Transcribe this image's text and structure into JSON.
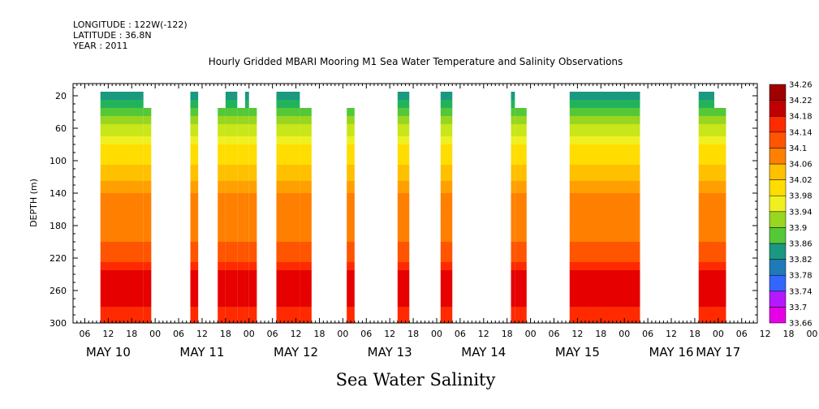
{
  "meta": {
    "longitude": "LONGITUDE : 122W(-122)",
    "latitude": "LATITUDE : 36.8N",
    "year": "YEAR : 2011"
  },
  "colors": {
    "scale": [
      "#e600e6",
      "#b31aff",
      "#6633ff",
      "#3366ff",
      "#1f7ab8",
      "#1a9980",
      "#22b35a",
      "#55c838",
      "#99d620",
      "#c8e61a",
      "#f0f020",
      "#ffdd00",
      "#ffc000",
      "#ffa000",
      "#ff8000",
      "#ff5500",
      "#ff2a00",
      "#e60000",
      "#c00000",
      "#a00000"
    ]
  },
  "chart_data": {
    "type": "heatmap",
    "title": "Hourly Gridded MBARI Mooring M1 Sea Water Temperature and Salinity Observations",
    "bottom_title": "Sea Water Salinity",
    "ylabel": "DEPTH (m)",
    "ylim": [
      300,
      5
    ],
    "yticks": [
      20,
      60,
      100,
      140,
      180,
      220,
      260,
      300
    ],
    "x_hour_ticks": [
      "06",
      "12",
      "18",
      "00",
      "06",
      "12",
      "18",
      "00",
      "06",
      "12",
      "18",
      "00",
      "06",
      "12",
      "18",
      "00",
      "06",
      "12",
      "18",
      "00",
      "06",
      "12",
      "18",
      "00",
      "06",
      "12",
      "18",
      "00",
      "06",
      "12",
      "18",
      "00",
      "06"
    ],
    "day_labels": [
      "MAY 10",
      "MAY 11",
      "MAY 12",
      "MAY 13",
      "MAY 14",
      "MAY 15",
      "MAY 16",
      "MAY 17"
    ],
    "day_label_hours": [
      12,
      36,
      60,
      84,
      108,
      132,
      156,
      168
    ],
    "xlim_hours_from_may10_00": [
      3,
      178
    ],
    "colorbar": {
      "levels": [
        33.66,
        33.7,
        33.74,
        33.78,
        33.82,
        33.86,
        33.9,
        33.94,
        33.98,
        34.02,
        34.06,
        34.1,
        34.14,
        34.18,
        34.22,
        34.26
      ],
      "min": 33.66,
      "max": 34.26
    },
    "data_segments": [
      {
        "start": 10,
        "end": 21,
        "top_depth": 20
      },
      {
        "start": 21,
        "end": 23,
        "top_depth": 40
      },
      {
        "start": 33,
        "end": 35,
        "top_depth": 20
      },
      {
        "start": 40,
        "end": 42,
        "top_depth": 40
      },
      {
        "start": 42,
        "end": 45,
        "top_depth": 20
      },
      {
        "start": 45,
        "end": 47,
        "top_depth": 40
      },
      {
        "start": 47,
        "end": 48,
        "top_depth": 20
      },
      {
        "start": 48,
        "end": 50,
        "top_depth": 40
      },
      {
        "start": 55,
        "end": 61,
        "top_depth": 20
      },
      {
        "start": 61,
        "end": 64,
        "top_depth": 40
      },
      {
        "start": 73,
        "end": 75,
        "top_depth": 40
      },
      {
        "start": 86,
        "end": 89,
        "top_depth": 20
      },
      {
        "start": 97,
        "end": 100,
        "top_depth": 20
      },
      {
        "start": 115,
        "end": 116,
        "top_depth": 20
      },
      {
        "start": 116,
        "end": 119,
        "top_depth": 40
      },
      {
        "start": 130,
        "end": 148,
        "top_depth": 20
      },
      {
        "start": 163,
        "end": 167,
        "top_depth": 20
      },
      {
        "start": 167,
        "end": 170,
        "top_depth": 40
      }
    ],
    "depth_profile": [
      {
        "depth": 20,
        "value": 33.83
      },
      {
        "depth": 40,
        "value": 33.88
      },
      {
        "depth": 60,
        "value": 33.94
      },
      {
        "depth": 80,
        "value": 33.99
      },
      {
        "depth": 100,
        "value": 34.01
      },
      {
        "depth": 120,
        "value": 34.04
      },
      {
        "depth": 140,
        "value": 34.08
      },
      {
        "depth": 160,
        "value": 34.1
      },
      {
        "depth": 180,
        "value": 34.1
      },
      {
        "depth": 200,
        "value": 34.11
      },
      {
        "depth": 220,
        "value": 34.13
      },
      {
        "depth": 240,
        "value": 34.18
      },
      {
        "depth": 260,
        "value": 34.2
      },
      {
        "depth": 280,
        "value": 34.17
      },
      {
        "depth": 300,
        "value": 34.15
      }
    ]
  }
}
